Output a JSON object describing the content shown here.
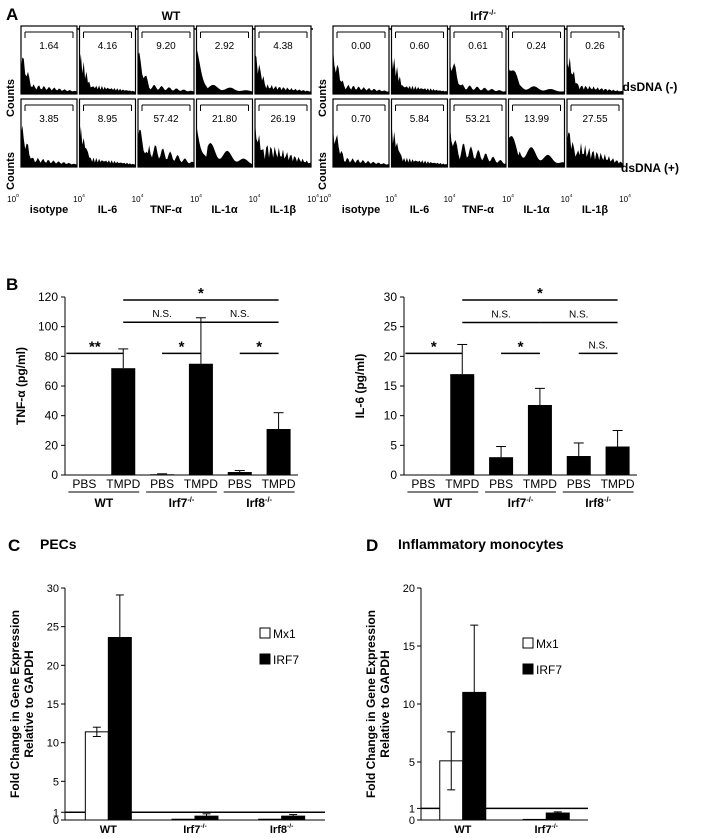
{
  "panels": {
    "A": "A",
    "B": "B",
    "C": "C",
    "D": "D"
  },
  "flow": {
    "groups": [
      {
        "label": "WT",
        "rows": [
          [
            "1.64",
            "4.16",
            "9.20",
            "2.92",
            "4.38"
          ],
          [
            "3.85",
            "8.95",
            "57.42",
            "21.80",
            "26.19"
          ]
        ]
      },
      {
        "label": "Irf7",
        "sup": "-/-",
        "rows": [
          [
            "0.00",
            "0.60",
            "0.61",
            "0.24",
            "0.26"
          ],
          [
            "0.70",
            "5.84",
            "53.21",
            "13.99",
            "27.55"
          ]
        ]
      }
    ],
    "row_labels": [
      "dsDNA (-)",
      "dsDNA (+)"
    ],
    "ylabel": "Counts",
    "x_tick_min": "10",
    "x_tick_min_exp": "0",
    "x_tick_max": "10",
    "x_tick_max_exp": "4",
    "markers": [
      "isotype",
      "IL-6",
      "TNF-α",
      "IL-1α",
      "IL-1β"
    ]
  },
  "chart_data": [
    {
      "type": "bar",
      "ylabel": "TNF-α (pg/ml)",
      "ylim": [
        0,
        120
      ],
      "yticks": [
        0,
        20,
        40,
        60,
        80,
        100,
        120
      ],
      "categories": [
        "PBS",
        "TMPD",
        "PBS",
        "TMPD",
        "PBS",
        "TMPD"
      ],
      "groups": [
        {
          "label": "WT"
        },
        {
          "label": "Irf7",
          "sup": "-/-"
        },
        {
          "label": "Irf8",
          "sup": "-/-"
        }
      ],
      "values": [
        0,
        72,
        0.5,
        75,
        2,
        31
      ],
      "errors": [
        0,
        13,
        0.3,
        31,
        1,
        11
      ],
      "annotations": [
        {
          "from": 0,
          "to": 1,
          "label": "**",
          "level": 82
        },
        {
          "from": 2,
          "to": 3,
          "label": "*",
          "level": 82
        },
        {
          "from": 4,
          "to": 5,
          "label": "*",
          "level": 82
        },
        {
          "from": 1,
          "to": 3,
          "label": "N.S.",
          "level": 103
        },
        {
          "from": 3,
          "to": 5,
          "label": "N.S.",
          "level": 103
        },
        {
          "from": 1,
          "to": 5,
          "label": "*",
          "level": 118
        }
      ]
    },
    {
      "type": "bar",
      "ylabel": "IL-6 (pg/ml)",
      "ylim": [
        0,
        30
      ],
      "yticks": [
        0,
        5,
        10,
        15,
        20,
        25,
        30
      ],
      "categories": [
        "PBS",
        "TMPD",
        "PBS",
        "TMPD",
        "PBS",
        "TMPD"
      ],
      "groups": [
        {
          "label": "WT"
        },
        {
          "label": "Irf7",
          "sup": "-/-"
        },
        {
          "label": "Irf8",
          "sup": "-/-"
        }
      ],
      "values": [
        0,
        17,
        3,
        11.8,
        3.2,
        4.8
      ],
      "errors": [
        0,
        5,
        1.8,
        2.8,
        2.2,
        2.7
      ],
      "annotations": [
        {
          "from": 0,
          "to": 1,
          "label": "*",
          "level": 20.5
        },
        {
          "from": 2,
          "to": 3,
          "label": "*",
          "level": 20.5
        },
        {
          "from": 4,
          "to": 5,
          "label": "N.S.",
          "level": 20.5
        },
        {
          "from": 1,
          "to": 3,
          "label": "N.S.",
          "level": 25.7
        },
        {
          "from": 3,
          "to": 5,
          "label": "N.S.",
          "level": 25.7
        },
        {
          "from": 1,
          "to": 5,
          "label": "*",
          "level": 29.5
        }
      ]
    },
    {
      "type": "bar",
      "title": "PECs",
      "ylabel_lines": [
        "Fold Change in Gene Expression",
        "Relative to GAPDH"
      ],
      "ylim": [
        0,
        30
      ],
      "yticks": [
        0,
        1,
        5,
        10,
        15,
        20,
        25,
        30
      ],
      "reference_line": 1,
      "categories": [
        {
          "label": "WT"
        },
        {
          "label": "Irf7",
          "sup": "-/-"
        },
        {
          "label": "Irf8",
          "sup": "-/-"
        }
      ],
      "series": [
        {
          "name": "Mx1",
          "color": "#ffffff",
          "values": [
            11.4,
            0.1,
            0.1
          ],
          "errors": [
            0.6,
            0.05,
            0.05
          ]
        },
        {
          "name": "IRF7",
          "color": "#000000",
          "values": [
            23.6,
            0.5,
            0.5
          ],
          "errors": [
            5.5,
            0.3,
            0.2
          ]
        }
      ]
    },
    {
      "type": "bar",
      "title": "Inflammatory monocytes",
      "ylabel_lines": [
        "Fold Change in Gene Expression",
        "Relative to GAPDH"
      ],
      "ylim": [
        0,
        20
      ],
      "yticks": [
        0,
        1,
        5,
        10,
        15,
        20
      ],
      "reference_line": 1,
      "categories": [
        {
          "label": "WT"
        },
        {
          "label": "Irf7",
          "sup": "-/-"
        }
      ],
      "series": [
        {
          "name": "Mx1",
          "color": "#ffffff",
          "values": [
            5.1,
            0.05
          ],
          "errors": [
            2.5,
            0.03
          ]
        },
        {
          "name": "IRF7",
          "color": "#000000",
          "values": [
            11,
            0.6
          ],
          "errors": [
            5.8,
            0.1
          ]
        }
      ]
    }
  ]
}
